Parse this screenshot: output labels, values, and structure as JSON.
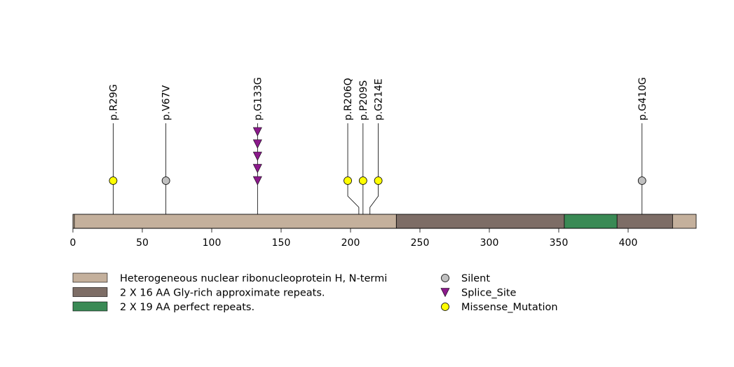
{
  "protein": {
    "length_aa": 449,
    "backbone_color": "#c4b09c"
  },
  "domains": [
    {
      "name": "Heterogeneous nuclear ribonucleoprotein H, N-termi",
      "start": 1,
      "end": 233,
      "color": "#c4b09c"
    },
    {
      "name": "2 X 16 AA Gly-rich approximate repeats.",
      "start": 233,
      "end": 432,
      "color": "#7d6d66"
    },
    {
      "name": "2 X 19 AA perfect repeats.",
      "start": 354,
      "end": 392,
      "color": "#3a8a55"
    }
  ],
  "axis": {
    "ticks": [
      0,
      50,
      100,
      150,
      200,
      250,
      300,
      350,
      400
    ]
  },
  "mutations": [
    {
      "label": "p.R29G",
      "position": 29,
      "display_position": 29,
      "type": "Missense_Mutation",
      "count": 1
    },
    {
      "label": "p.V67V",
      "position": 67,
      "display_position": 67,
      "type": "Silent",
      "count": 1
    },
    {
      "label": "p.G133G",
      "position": 133,
      "display_position": 133,
      "type": "Splice_Site",
      "count": 5
    },
    {
      "label": "p.R206Q",
      "position": 206,
      "display_position": 198,
      "type": "Missense_Mutation",
      "count": 1
    },
    {
      "label": "p.P209S",
      "position": 209,
      "display_position": 209,
      "type": "Missense_Mutation",
      "count": 1
    },
    {
      "label": "p.G214E",
      "position": 214,
      "display_position": 220,
      "type": "Missense_Mutation",
      "count": 1
    },
    {
      "label": "p.G410G",
      "position": 410,
      "display_position": 410,
      "type": "Silent",
      "count": 1
    }
  ],
  "legend": {
    "domains": [
      {
        "label": "Heterogeneous nuclear ribonucleoprotein H, N-termi",
        "color": "#c4b09c"
      },
      {
        "label": "2 X 16 AA Gly-rich approximate repeats.",
        "color": "#7d6d66"
      },
      {
        "label": "2 X 19 AA perfect repeats.",
        "color": "#3a8a55"
      }
    ],
    "types": [
      {
        "label": "Silent",
        "symbol": "circle",
        "color": "#c0c0c0"
      },
      {
        "label": "Splice_Site",
        "symbol": "triangle",
        "color": "#8b1a8b"
      },
      {
        "label": "Missense_Mutation",
        "symbol": "circle",
        "color": "#ffff00"
      }
    ]
  }
}
